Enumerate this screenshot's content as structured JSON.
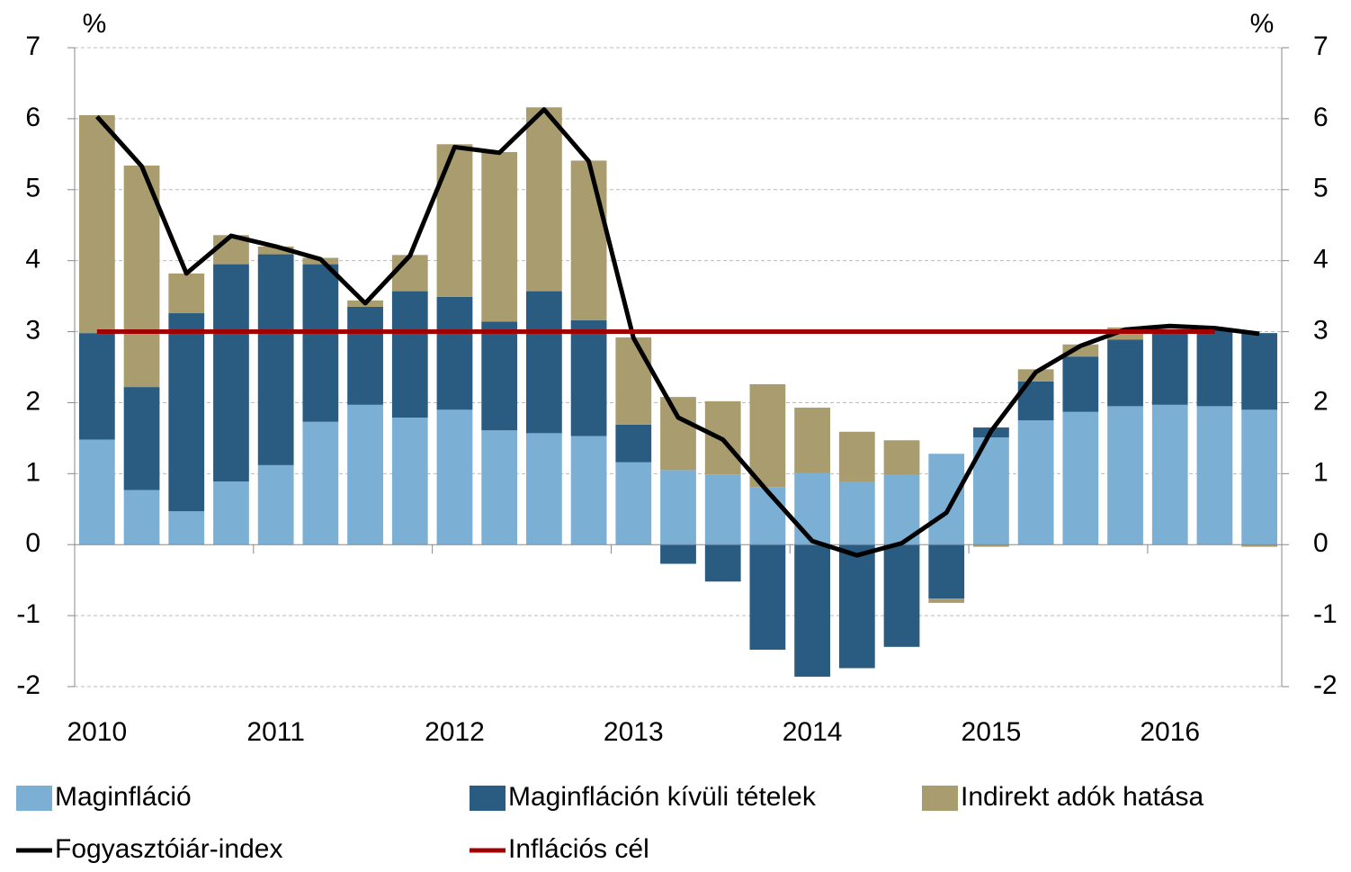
{
  "chart_data": {
    "type": "stacked-bar-line",
    "y_label": "%",
    "y2_label": "%",
    "categories": [
      "2010",
      null,
      null,
      null,
      "2011",
      null,
      null,
      null,
      "2012",
      null,
      null,
      null,
      "2013",
      null,
      null,
      null,
      "2014",
      null,
      null,
      null,
      "2015",
      null,
      null,
      null,
      "2016",
      null,
      null
    ],
    "series": [
      {
        "name": "Maginfláció",
        "kind": "bar",
        "color": "#7bafd4",
        "values": [
          1.48,
          0.77,
          0.47,
          0.89,
          1.12,
          1.73,
          1.97,
          1.79,
          1.9,
          1.61,
          1.57,
          1.53,
          1.16,
          1.05,
          0.99,
          0.81,
          1.01,
          0.89,
          0.98,
          1.28,
          1.51,
          1.75,
          1.87,
          1.95,
          1.97,
          1.95,
          1.9
        ]
      },
      {
        "name": "Maginfláción kívüli tételek",
        "kind": "bar",
        "color": "#2a5b80",
        "values": [
          1.5,
          1.45,
          2.79,
          3.06,
          2.97,
          2.22,
          1.38,
          1.78,
          1.59,
          1.53,
          2.0,
          1.63,
          0.53,
          -0.27,
          -0.52,
          -1.48,
          -1.86,
          -1.74,
          -1.44,
          -0.76,
          0.14,
          0.55,
          0.78,
          0.94,
          1.04,
          1.07,
          1.08
        ]
      },
      {
        "name": "Indirekt adók hatása",
        "kind": "bar",
        "color": "#a99c6e",
        "values": [
          3.07,
          3.12,
          0.56,
          0.41,
          0.11,
          0.09,
          0.09,
          0.51,
          2.15,
          2.39,
          2.59,
          2.25,
          1.23,
          1.03,
          1.03,
          1.45,
          0.92,
          0.7,
          0.49,
          -0.06,
          -0.03,
          0.17,
          0.17,
          0.17,
          0.03,
          0.02,
          -0.03
        ]
      },
      {
        "name": "Fogyasztóiár-index",
        "kind": "line",
        "color": "#000000",
        "values": [
          6.03,
          5.33,
          3.82,
          4.35,
          4.2,
          4.02,
          3.4,
          4.07,
          5.6,
          5.52,
          6.13,
          5.4,
          2.91,
          1.79,
          1.48,
          0.75,
          0.05,
          -0.15,
          0.02,
          0.45,
          1.6,
          2.43,
          2.8,
          3.03,
          3.08,
          3.05,
          2.97
        ]
      },
      {
        "name": "Inflációs cél",
        "kind": "line",
        "color": "#a00000",
        "values": [
          3,
          3,
          3,
          3,
          3,
          3,
          3,
          3,
          3,
          3,
          3,
          3,
          3,
          3,
          3,
          3,
          3,
          3,
          3,
          3,
          3,
          3,
          3,
          3,
          3,
          3,
          null
        ]
      }
    ],
    "ylim": [
      -2,
      7
    ],
    "yticks": [
      -2,
      -1,
      0,
      1,
      2,
      3,
      4,
      5,
      6,
      7
    ],
    "y2lim": [
      -2,
      7
    ],
    "y2ticks": [
      -2,
      -1,
      0,
      1,
      2,
      3,
      4,
      5,
      6,
      7
    ],
    "grid": true
  }
}
